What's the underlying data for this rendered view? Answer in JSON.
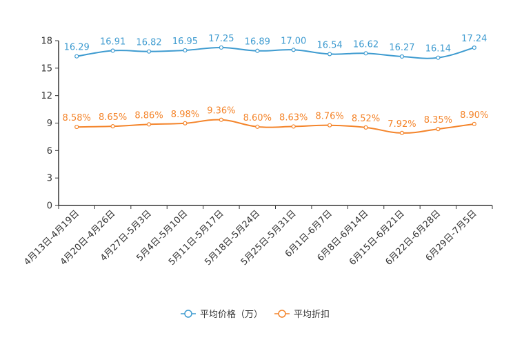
{
  "chart_data": {
    "type": "line",
    "title": "",
    "xlabel": "",
    "ylabel": "",
    "ylim": [
      0,
      18
    ],
    "yticks": [
      "0",
      "3",
      "6",
      "9",
      "12",
      "15",
      "18"
    ],
    "categories": [
      "4月13日-4月19日",
      "4月20日-4月26日",
      "4月27日-5月3日",
      "5月4日-5月10日",
      "5月11日-5月17日",
      "5月18日-5月24日",
      "5月25日-5月31日",
      "6月1日-6月7日",
      "6月8日-6月14日",
      "6月15日-6月21日",
      "6月22日-6月28日",
      "6月29日-7月5日"
    ],
    "series": [
      {
        "name": "平均价格（万）",
        "color": "#3e9bd0",
        "values": [
          16.29,
          16.91,
          16.82,
          16.95,
          17.25,
          16.89,
          17.0,
          16.54,
          16.62,
          16.27,
          16.14,
          17.24
        ],
        "labels": [
          "16.29",
          "16.91",
          "16.82",
          "16.95",
          "17.25",
          "16.89",
          "17.00",
          "16.54",
          "16.62",
          "16.27",
          "16.14",
          "17.24"
        ]
      },
      {
        "name": "平均折扣",
        "color": "#f4842a",
        "values": [
          8.58,
          8.65,
          8.86,
          8.98,
          9.36,
          8.6,
          8.63,
          8.76,
          8.52,
          7.92,
          8.35,
          8.9
        ],
        "labels": [
          "8.58%",
          "8.65%",
          "8.86%",
          "8.98%",
          "9.36%",
          "8.60%",
          "8.63%",
          "8.76%",
          "8.52%",
          "7.92%",
          "8.35%",
          "8.90%"
        ]
      }
    ],
    "legend_position": "bottom-center",
    "grid": false
  }
}
